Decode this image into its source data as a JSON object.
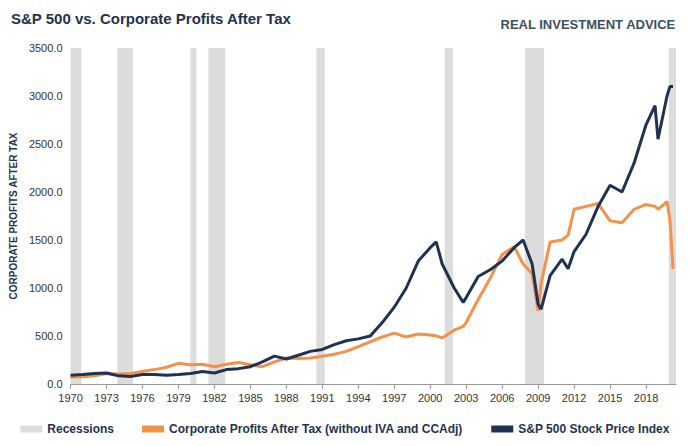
{
  "chart_data": {
    "type": "line",
    "title": "S&P 500 vs. Corporate Profits After Tax",
    "brand": "REAL INVESTMENT ADVICE",
    "ylabel": "CORPORATE PROFITS AFTER TAX",
    "x": [
      1970,
      1971,
      1972,
      1973,
      1974,
      1975,
      1976,
      1977,
      1978,
      1979,
      1980,
      1981,
      1982,
      1983,
      1984,
      1985,
      1986,
      1987,
      1988,
      1989,
      1990,
      1991,
      1992,
      1993,
      1994,
      1995,
      1996,
      1997,
      1998,
      1999,
      2000,
      2000.5,
      2001,
      2002,
      2002.75,
      2003,
      2004,
      2005,
      2006,
      2007,
      2007.75,
      2008.5,
      2009,
      2009.25,
      2010,
      2011,
      2011.5,
      2012,
      2013,
      2014,
      2015,
      2016,
      2017,
      2018,
      2018.75,
      2019,
      2019.75,
      2020,
      2020.25
    ],
    "series": [
      {
        "name": "Corporate Profits After Tax (without IVA and CCAdj)",
        "color": "#f4914a",
        "values": [
          70,
          75,
          85,
          110,
          105,
          110,
          130,
          150,
          175,
          215,
          200,
          205,
          180,
          205,
          225,
          200,
          180,
          230,
          270,
          265,
          270,
          290,
          310,
          340,
          390,
          440,
          490,
          530,
          490,
          520,
          510,
          500,
          480,
          560,
          600,
          640,
          880,
          1100,
          1350,
          1430,
          1250,
          1150,
          760,
          1050,
          1480,
          1500,
          1550,
          1820,
          1850,
          1880,
          1700,
          1680,
          1820,
          1870,
          1850,
          1820,
          1900,
          1700,
          1200
        ]
      },
      {
        "name": "S&P 500 Stock Price Index",
        "color": "#1f3251",
        "values": [
          90,
          98,
          110,
          115,
          85,
          78,
          100,
          100,
          92,
          100,
          110,
          130,
          115,
          150,
          160,
          180,
          230,
          290,
          260,
          300,
          340,
          360,
          410,
          450,
          470,
          500,
          640,
          800,
          1000,
          1280,
          1420,
          1480,
          1250,
          1000,
          850,
          900,
          1120,
          1190,
          1280,
          1420,
          1500,
          1250,
          830,
          780,
          1130,
          1300,
          1200,
          1380,
          1560,
          1850,
          2070,
          2000,
          2300,
          2700,
          2900,
          2550,
          3000,
          3100,
          3100
        ]
      }
    ],
    "recessions": {
      "name": "Recessions",
      "color": "#dcdcdc",
      "periods": [
        [
          1970,
          1970.9
        ],
        [
          1973.9,
          1975.2
        ],
        [
          1980,
          1980.5
        ],
        [
          1981.5,
          1982.9
        ],
        [
          1990.5,
          1991.2
        ],
        [
          2001.2,
          2001.9
        ],
        [
          2007.9,
          2009.5
        ],
        [
          2019.9,
          2020.5
        ]
      ]
    },
    "xlim": [
      1970,
      2020.5
    ],
    "xticks": [
      1970,
      1973,
      1976,
      1979,
      1982,
      1985,
      1988,
      1991,
      1994,
      1997,
      2000,
      2003,
      2006,
      2009,
      2012,
      2015,
      2018
    ],
    "ylim": [
      0,
      3500
    ],
    "yticks": [
      {
        "value": 0,
        "label": "0.0"
      },
      {
        "value": 500,
        "label": "500.0"
      },
      {
        "value": 1000,
        "label": "1000.0"
      },
      {
        "value": 1500,
        "label": "1500.0"
      },
      {
        "value": 2000,
        "label": "2000.0"
      },
      {
        "value": 2500,
        "label": "2500.0"
      },
      {
        "value": 3000,
        "label": "3000.0"
      },
      {
        "value": 3500,
        "label": "3500.0"
      }
    ],
    "grid": false,
    "legend": "bottom"
  }
}
